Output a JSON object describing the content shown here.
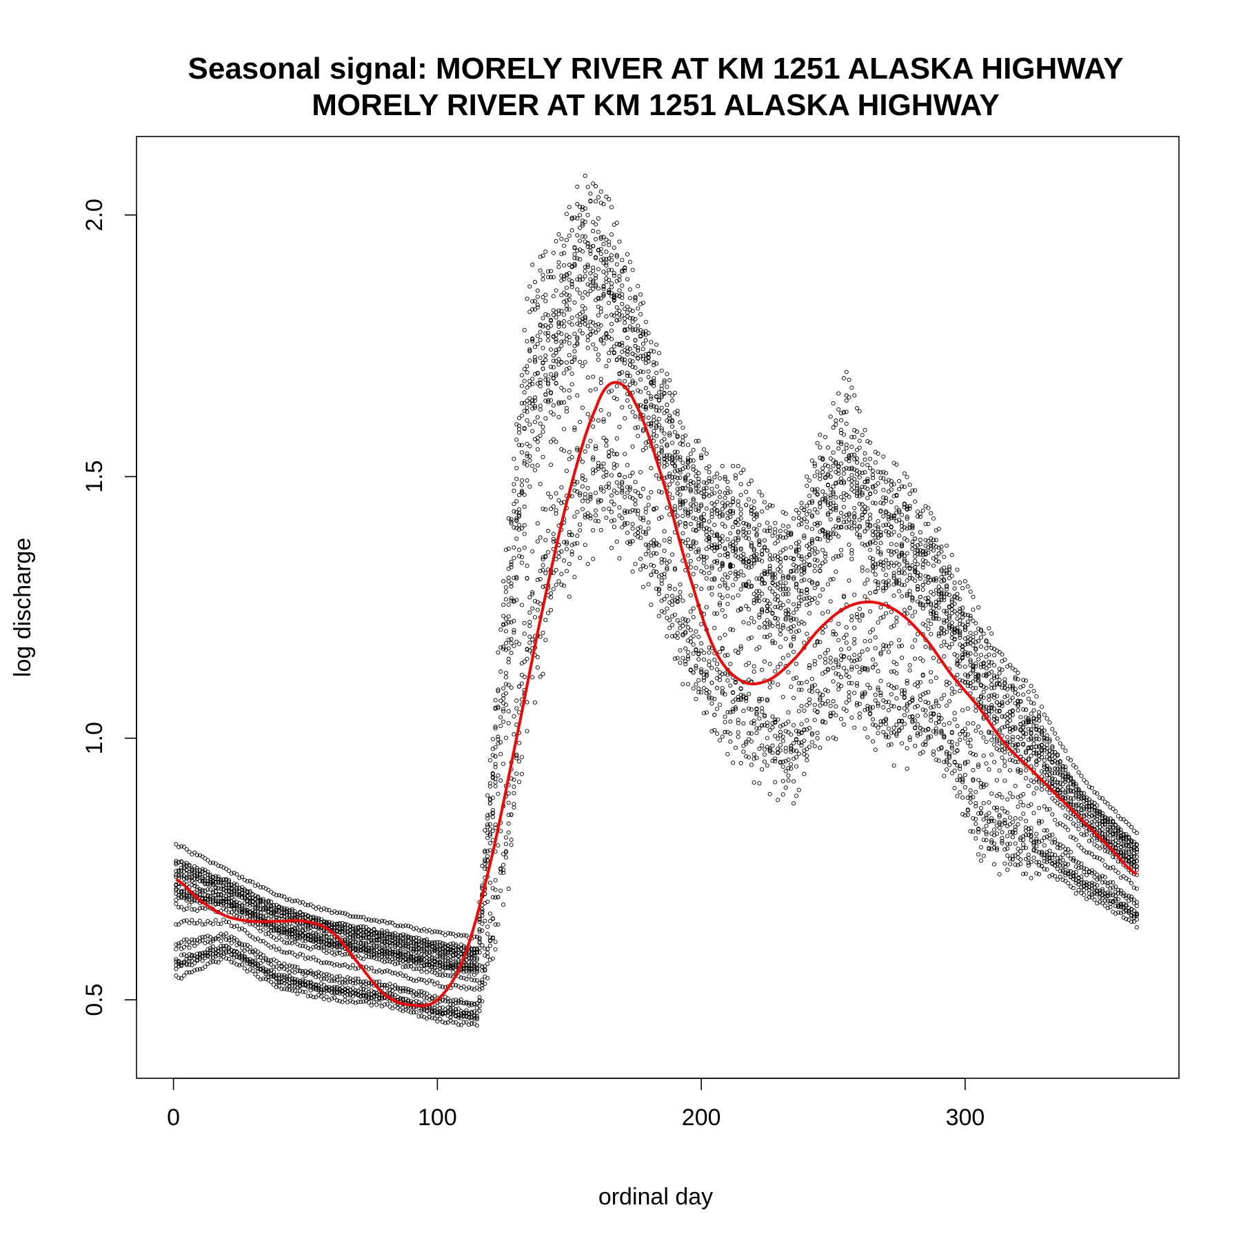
{
  "chart_data": {
    "type": "scatter",
    "title": "Seasonal signal: MORELY RIVER AT KM 1251 ALASKA HIGHWAY",
    "subtitle": "MORELY RIVER AT KM 1251 ALASKA HIGHWAY",
    "xlabel": "ordinal day",
    "ylabel": "log discharge",
    "xlim": [
      -14,
      381
    ],
    "ylim": [
      0.35,
      2.15
    ],
    "x_ticks": [
      0,
      100,
      200,
      300
    ],
    "x_tick_labels": [
      "0",
      "100",
      "200",
      "300"
    ],
    "y_ticks": [
      0.5,
      1.0,
      1.5,
      2.0
    ],
    "y_tick_labels": [
      "0.5",
      "1.0",
      "1.5",
      "2.0"
    ],
    "grid": false,
    "colors": {
      "points": "#000000",
      "fit": "#ff0000"
    },
    "series": [
      {
        "kind": "points",
        "note": "daily observations, many years; envelope of the point cloud given as band",
        "band_x": [
          1,
          20,
          40,
          60,
          80,
          100,
          115,
          125,
          135,
          145,
          155,
          165,
          175,
          185,
          195,
          205,
          215,
          225,
          235,
          245,
          255,
          265,
          275,
          285,
          295,
          305,
          315,
          325,
          335,
          345,
          355,
          365
        ],
        "band_low": [
          0.51,
          0.56,
          0.5,
          0.48,
          0.47,
          0.44,
          0.43,
          0.62,
          1.0,
          1.2,
          1.3,
          1.35,
          1.3,
          1.2,
          1.05,
          0.98,
          0.92,
          0.88,
          0.84,
          0.96,
          0.98,
          0.95,
          0.93,
          0.92,
          0.9,
          0.75,
          0.72,
          0.72,
          0.7,
          0.67,
          0.65,
          0.62
        ],
        "band_high": [
          0.8,
          0.75,
          0.7,
          0.67,
          0.65,
          0.63,
          0.62,
          1.3,
          1.9,
          1.95,
          2.08,
          2.03,
          1.88,
          1.72,
          1.6,
          1.52,
          1.52,
          1.45,
          1.42,
          1.58,
          1.7,
          1.55,
          1.52,
          1.45,
          1.35,
          1.25,
          1.15,
          1.1,
          1.0,
          0.92,
          0.87,
          0.82
        ]
      },
      {
        "kind": "fit",
        "x": [
          1,
          10,
          20,
          30,
          40,
          50,
          60,
          70,
          80,
          90,
          100,
          110,
          120,
          130,
          140,
          150,
          160,
          167,
          175,
          185,
          195,
          205,
          215,
          225,
          235,
          245,
          255,
          265,
          275,
          285,
          295,
          305,
          315,
          325,
          335,
          345,
          355,
          365
        ],
        "y": [
          0.73,
          0.69,
          0.66,
          0.65,
          0.65,
          0.65,
          0.63,
          0.57,
          0.51,
          0.49,
          0.5,
          0.58,
          0.76,
          1.0,
          1.25,
          1.47,
          1.63,
          1.68,
          1.64,
          1.5,
          1.32,
          1.17,
          1.11,
          1.11,
          1.15,
          1.21,
          1.25,
          1.26,
          1.24,
          1.19,
          1.12,
          1.06,
          0.99,
          0.94,
          0.89,
          0.84,
          0.79,
          0.74
        ]
      }
    ]
  }
}
